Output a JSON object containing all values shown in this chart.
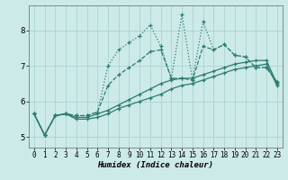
{
  "xlabel": "Humidex (Indice chaleur)",
  "ylabel": "",
  "background_color": "#cceae8",
  "grid_color": "#aad4d2",
  "line_color": "#2d7b70",
  "xlim": [
    -0.5,
    23.5
  ],
  "ylim": [
    4.7,
    8.7
  ],
  "xticks": [
    0,
    1,
    2,
    3,
    4,
    5,
    6,
    7,
    8,
    9,
    10,
    11,
    12,
    13,
    14,
    15,
    16,
    17,
    18,
    19,
    20,
    21,
    22,
    23
  ],
  "yticks": [
    5,
    6,
    7,
    8
  ],
  "lines": [
    {
      "x": [
        0,
        1,
        2,
        3,
        4,
        5,
        6,
        7,
        8,
        9,
        10,
        11,
        12,
        13,
        14,
        15,
        16,
        17,
        18,
        19,
        20,
        21,
        22,
        23
      ],
      "y": [
        5.65,
        5.05,
        5.6,
        5.65,
        5.6,
        5.6,
        5.7,
        7.0,
        7.45,
        7.65,
        7.85,
        8.15,
        7.55,
        6.65,
        8.45,
        6.6,
        8.25,
        7.45,
        7.6,
        7.3,
        7.25,
        6.95,
        6.95,
        6.55
      ],
      "linestyle": "dotted",
      "linewidth": 0.9
    },
    {
      "x": [
        0,
        1,
        2,
        3,
        4,
        5,
        6,
        7,
        8,
        9,
        10,
        11,
        12,
        13,
        14,
        15,
        16,
        17,
        18,
        19,
        20,
        21,
        22,
        23
      ],
      "y": [
        5.65,
        5.05,
        5.6,
        5.65,
        5.6,
        5.6,
        5.7,
        6.45,
        6.75,
        6.95,
        7.15,
        7.4,
        7.45,
        6.65,
        6.65,
        6.6,
        7.55,
        7.45,
        7.6,
        7.3,
        7.25,
        6.95,
        6.95,
        6.55
      ],
      "linestyle": "dashed",
      "linewidth": 0.9
    },
    {
      "x": [
        0,
        1,
        2,
        3,
        4,
        5,
        6,
        7,
        8,
        9,
        10,
        11,
        12,
        13,
        14,
        15,
        16,
        17,
        18,
        19,
        20,
        21,
        22,
        23
      ],
      "y": [
        5.65,
        5.05,
        5.6,
        5.65,
        5.55,
        5.55,
        5.65,
        5.75,
        5.9,
        6.05,
        6.2,
        6.35,
        6.5,
        6.6,
        6.65,
        6.65,
        6.75,
        6.85,
        6.95,
        7.05,
        7.1,
        7.15,
        7.15,
        6.5
      ],
      "linestyle": "solid",
      "linewidth": 0.9
    },
    {
      "x": [
        0,
        1,
        2,
        3,
        4,
        5,
        6,
        7,
        8,
        9,
        10,
        11,
        12,
        13,
        14,
        15,
        16,
        17,
        18,
        19,
        20,
        21,
        22,
        23
      ],
      "y": [
        5.65,
        5.05,
        5.6,
        5.65,
        5.5,
        5.5,
        5.55,
        5.65,
        5.8,
        5.9,
        6.0,
        6.1,
        6.2,
        6.35,
        6.45,
        6.5,
        6.6,
        6.7,
        6.8,
        6.9,
        6.95,
        7.0,
        7.05,
        6.45
      ],
      "linestyle": "solid",
      "linewidth": 0.9
    }
  ]
}
